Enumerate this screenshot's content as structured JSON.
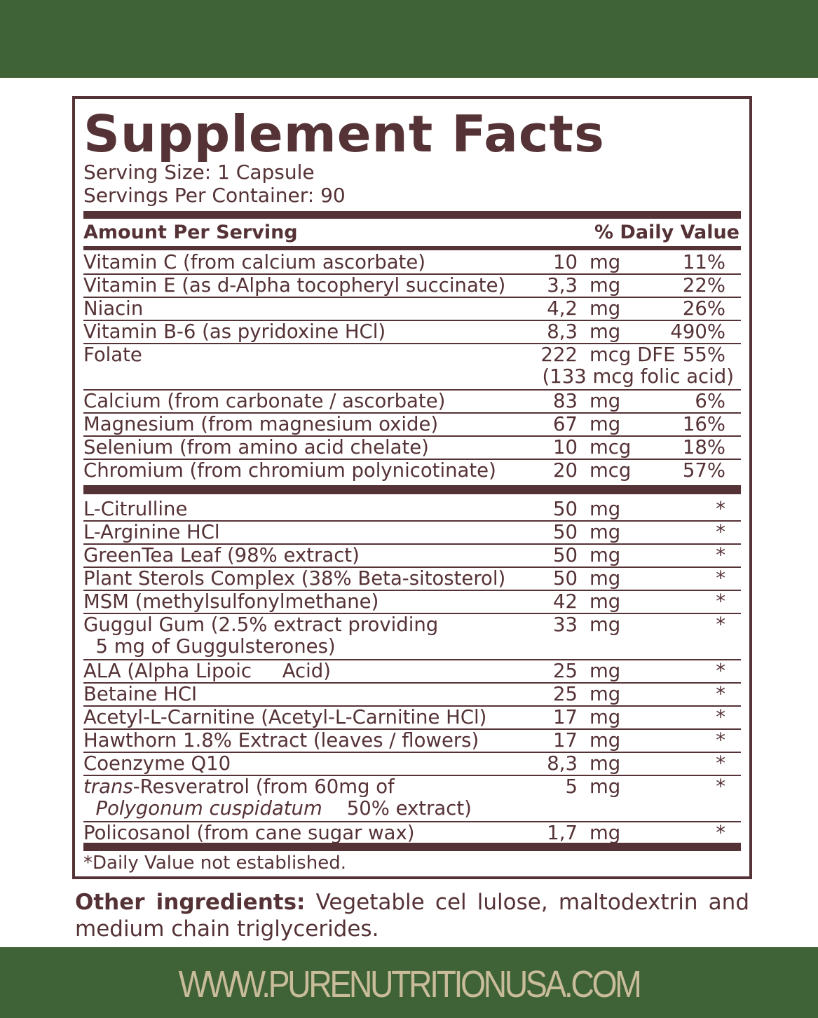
{
  "colors": {
    "brand_green": "#3f6236",
    "label_brown": "#553236",
    "url_text": "#c8bc9a"
  },
  "title": "Supplement Facts",
  "serving_size": "Serving Size: 1 Capsule",
  "servings_per_container": "Servings Per Container: 90",
  "header": {
    "amount": "Amount Per Serving",
    "dv": "% Daily Value"
  },
  "vitamins": [
    {
      "name": "Vitamin C (from calcium ascorbate)",
      "amount": "10",
      "unit": "mg",
      "dv": "11%"
    },
    {
      "name": "Vitamin E (as d-Alpha tocopheryl succinate)",
      "amount": "3,3",
      "unit": "mg",
      "dv": "22%"
    },
    {
      "name": "Niacin",
      "amount": "4,2",
      "unit": "mg",
      "dv": "26%"
    },
    {
      "name": "Vitamin B-6 (as pyridoxine HCl)",
      "amount": "8,3",
      "unit": "mg",
      "dv": "490%"
    },
    {
      "name": "Folate",
      "amount": "222",
      "unit": "mcg DFE",
      "dv": "55%",
      "line2": "(133 mcg folic acid)"
    },
    {
      "name": "Calcium (from carbonate / ascorbate)",
      "amount": "83",
      "unit": "mg",
      "dv": "6%"
    },
    {
      "name": "Magnesium (from magnesium oxide)",
      "amount": "67",
      "unit": "mg",
      "dv": "16%"
    },
    {
      "name": "Selenium (from amino acid chelate)",
      "amount": "10",
      "unit": "mcg",
      "dv": "18%"
    },
    {
      "name": "Chromium (from chromium polynicotinate)",
      "amount": "20",
      "unit": "mcg",
      "dv": "57%"
    }
  ],
  "others": [
    {
      "name": "L-Citrulline",
      "amount": "50",
      "unit": "mg",
      "dv": "*"
    },
    {
      "name": "L-Arginine HCl",
      "amount": "50",
      "unit": "mg",
      "dv": "*"
    },
    {
      "name": "GreenTea Leaf (98% extract)",
      "amount": "50",
      "unit": "mg",
      "dv": "*"
    },
    {
      "name": "Plant Sterols Complex (38% Beta-sitosterol)",
      "amount": "50",
      "unit": "mg",
      "dv": "*"
    },
    {
      "name": "MSM (methylsulfonylmethane)",
      "amount": "42",
      "unit": "mg",
      "dv": "*"
    },
    {
      "name": "Guggul Gum (2.5% extract providing",
      "name2": "  5 mg of Guggulsterones)",
      "amount": "33",
      "unit": "mg",
      "dv": "*"
    },
    {
      "name": "ALA (Alpha Lipoic     Acid)",
      "amount": "25",
      "unit": "mg",
      "dv": "*"
    },
    {
      "name": "Betaine HCI",
      "amount": "25",
      "unit": "mg",
      "dv": "*"
    },
    {
      "name": "Acetyl-L-Carnitine (Acetyl-L-Carnitine HCl)",
      "amount": "17",
      "unit": "mg",
      "dv": "*"
    },
    {
      "name": "Hawthorn 1.8% Extract (leaves / flowers)",
      "amount": "17",
      "unit": "mg",
      "dv": "*"
    },
    {
      "name": "Coenzyme Q10",
      "amount": "8,3",
      "unit": "mg",
      "dv": "*"
    },
    {
      "name_italic": "trans",
      "name": "-Resveratrol (from 60mg of",
      "name2_italic": "  Polygonum cuspidatum",
      "name2": "    50% extract)",
      "amount": "5",
      "unit": "mg",
      "dv": "*"
    },
    {
      "name": "Policosanol (from cane sugar wax)",
      "amount": "1,7",
      "unit": "mg",
      "dv": "*"
    }
  ],
  "footnote": "*Daily Value not established.",
  "other_ingredients": {
    "label": "Other ingredients:",
    "text": " Vegetable cel lulose, maltodextrin and medium chain triglycerides."
  },
  "website": "WWW.PURENUTRITIONUSA.COM"
}
